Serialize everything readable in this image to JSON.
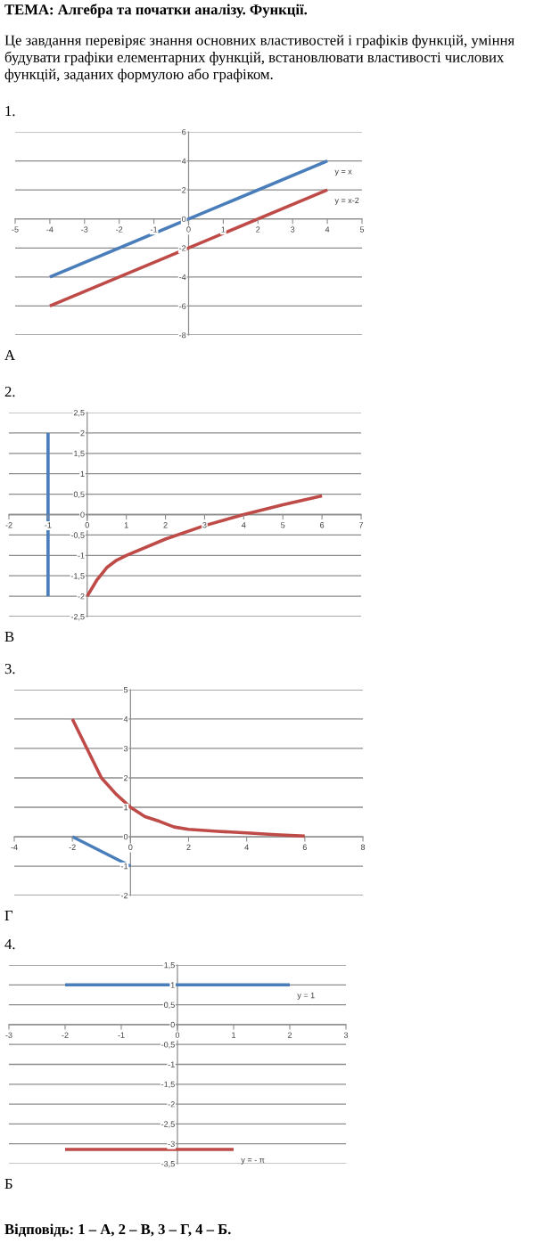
{
  "chart_data": [
    {
      "type": "line",
      "title": "ТЕМА: Алгебра та початки аналізу. Функції.",
      "subtitle": "Це завдання перевіряє знання основних властивостей і графіків функцій, уміння будувати графіки елементарних функцій, встановлювати властивості числових функцій, заданих формулою або графіком.",
      "series": [
        {
          "name": "y = x",
          "color": "#4a7ebb",
          "x": [
            -4,
            4
          ],
          "values": [
            -4,
            4
          ]
        },
        {
          "name": "y = x-2",
          "color": "#be4b48",
          "x": [
            -4,
            4
          ],
          "values": [
            -6,
            2
          ]
        }
      ],
      "xlim": [
        -5,
        5
      ],
      "xticks": [
        -5,
        -4,
        -3,
        -2,
        -1,
        0,
        1,
        2,
        3,
        4,
        5
      ],
      "ylim": [
        -8,
        6
      ],
      "yticks": [
        -8,
        -6,
        -4,
        -2,
        0,
        2,
        4,
        6
      ],
      "grid": "y",
      "legend": false,
      "annotations": [
        "1.",
        "А"
      ]
    },
    {
      "type": "line",
      "series": [
        {
          "color": "#4a7ebb",
          "x": [
            -1,
            -1
          ],
          "values": [
            -2,
            2
          ]
        },
        {
          "color": "#be4b48",
          "x": [
            0,
            0.25,
            0.5,
            0.75,
            1,
            2,
            3,
            4,
            5,
            6
          ],
          "values": [
            -2,
            -1.6,
            -1.3,
            -1.12,
            -1,
            -0.6,
            -0.27,
            0,
            0.24,
            0.46
          ]
        }
      ],
      "xlim": [
        -2,
        7
      ],
      "xticks": [
        -2,
        -1,
        0,
        1,
        2,
        3,
        4,
        5,
        6,
        7
      ],
      "ylim": [
        -2.5,
        2.5
      ],
      "yticks": [
        {
          "value": -2.5,
          "label": "-2,5"
        },
        -2,
        {
          "value": -1.5,
          "label": "-1,5"
        },
        -1,
        {
          "value": -0.5,
          "label": "-0,5"
        },
        0,
        {
          "value": 0.5,
          "label": "0,5"
        },
        1,
        {
          "value": 1.5,
          "label": "1,5"
        },
        2,
        {
          "value": 2.5,
          "label": "2,5"
        }
      ],
      "grid": "y",
      "legend": false,
      "annotations": [
        "2.",
        "В"
      ]
    },
    {
      "type": "line",
      "series": [
        {
          "color": "#be4b48",
          "x": [
            -2,
            -1.5,
            -1,
            -0.5,
            0,
            0.5,
            1,
            1.5,
            2,
            3,
            4,
            5,
            6
          ],
          "values": [
            4,
            3,
            2,
            1.45,
            1,
            0.68,
            0.52,
            0.33,
            0.25,
            0.18,
            0.13,
            0.07,
            0.02
          ]
        },
        {
          "color": "#4a7ebb",
          "x": [
            -2,
            0
          ],
          "values": [
            0,
            -1
          ]
        }
      ],
      "xlim": [
        -4,
        8
      ],
      "xticks": [
        -4,
        -2,
        0,
        2,
        4,
        6,
        8
      ],
      "ylim": [
        -2,
        5
      ],
      "yticks": [
        -2,
        -1,
        0,
        1,
        2,
        3,
        4,
        5
      ],
      "grid": "y",
      "legend": false,
      "annotations": [
        "3.",
        "Г"
      ]
    },
    {
      "type": "line",
      "series": [
        {
          "name": "y = 1",
          "color": "#4a7ebb",
          "x": [
            -2,
            2
          ],
          "values": [
            1,
            1
          ]
        },
        {
          "name": "y = - π",
          "color": "#be4b48",
          "x": [
            -2,
            1
          ],
          "values": [
            -3.14,
            -3.14
          ]
        }
      ],
      "xlim": [
        -3,
        3
      ],
      "xticks": [
        -3,
        -2,
        -1,
        0,
        1,
        2,
        3
      ],
      "ylim": [
        -3.5,
        1.5
      ],
      "yticks": [
        {
          "value": -3.5,
          "label": "-3,5"
        },
        -3,
        {
          "value": -2.5,
          "label": "-2,5"
        },
        -2,
        {
          "value": -1.5,
          "label": "-1,5"
        },
        -1,
        {
          "value": -0.5,
          "label": "-0,5"
        },
        0,
        {
          "value": 0.5,
          "label": "0,5"
        },
        1,
        {
          "value": 1.5,
          "label": "1,5"
        }
      ],
      "grid": "y",
      "legend": false,
      "annotations": [
        "4.",
        "Б",
        "Відповідь: 1 – А, 2 – В, 3 – Г, 4 – Б."
      ]
    }
  ]
}
